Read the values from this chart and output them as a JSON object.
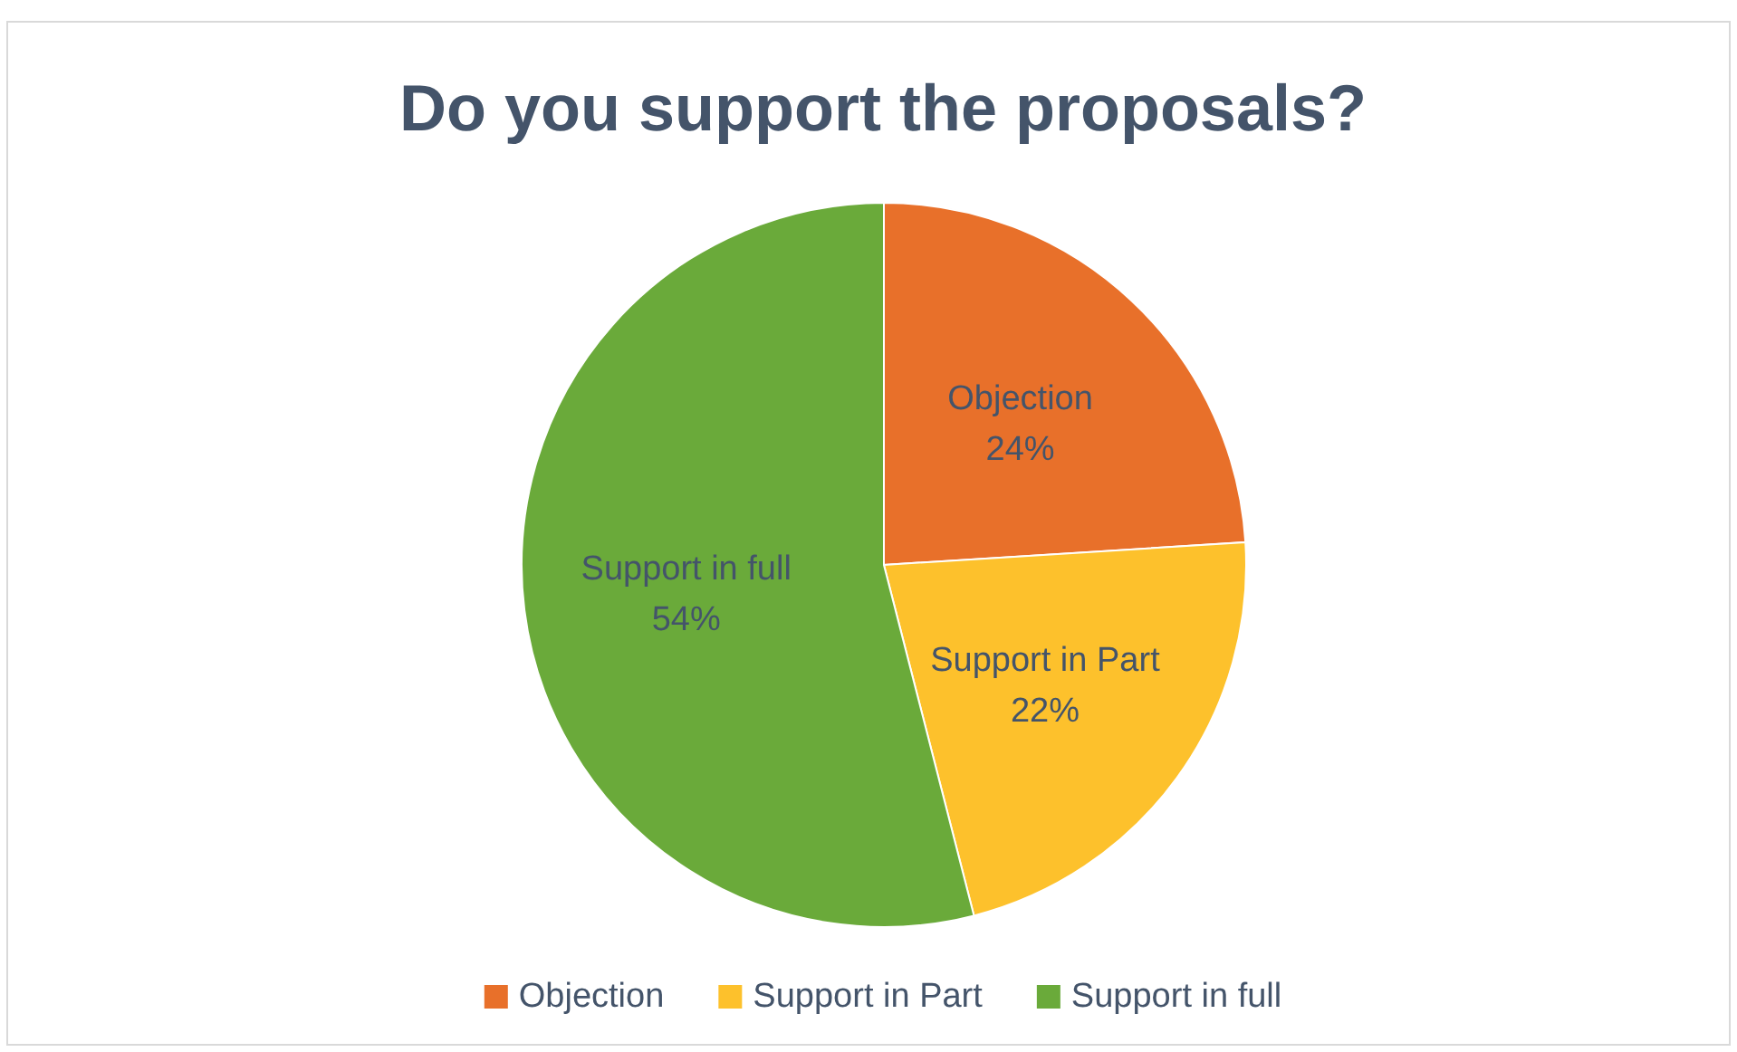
{
  "chart_data": {
    "type": "pie",
    "title": "Do you support the proposals?",
    "categories": [
      "Objection",
      "Support in Part",
      "Support in full"
    ],
    "values": [
      24,
      22,
      54
    ],
    "value_labels": [
      "24%",
      "22%",
      "54%"
    ],
    "colors": [
      "#e8702a",
      "#fdc12c",
      "#6aaa3a"
    ],
    "legend": "bottom"
  }
}
